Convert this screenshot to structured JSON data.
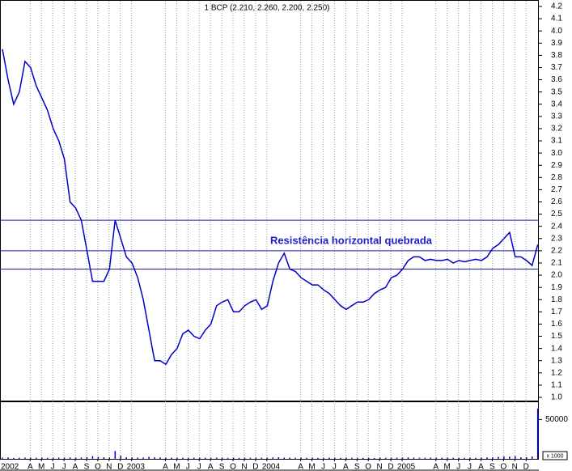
{
  "chart_data": [
    {
      "type": "line",
      "title": "1 BCP (2.210, 2.260, 2.200, 2.250)",
      "annotation": "Resistência horizontal quebrada",
      "categories": [
        "2002",
        null,
        null,
        null,
        null,
        null,
        "A",
        null,
        "M",
        null,
        "J",
        null,
        "J",
        null,
        "A",
        null,
        "S",
        null,
        "O",
        null,
        "N",
        null,
        "D",
        null,
        "2003",
        null,
        null,
        null,
        null,
        null,
        "A",
        null,
        "M",
        null,
        "J",
        null,
        "J",
        null,
        "A",
        null,
        "S",
        null,
        "O",
        null,
        "N",
        null,
        "D",
        null,
        "2004",
        null,
        null,
        null,
        null,
        null,
        "A",
        null,
        "M",
        null,
        "J",
        null,
        "J",
        null,
        "A",
        null,
        "S",
        null,
        "O",
        null,
        "N",
        null,
        "D",
        null,
        "2005",
        null,
        null,
        null,
        null,
        null,
        "A",
        null,
        "M",
        null,
        "J",
        null,
        "J",
        null,
        "A",
        null,
        "S",
        null,
        "O",
        null,
        "N",
        null,
        "D",
        null
      ],
      "series": [
        {
          "name": "BCP",
          "color": "#0000c8",
          "values": [
            3.85,
            3.6,
            3.4,
            3.5,
            3.75,
            3.7,
            3.55,
            3.45,
            3.35,
            3.2,
            3.1,
            2.95,
            2.6,
            2.55,
            2.45,
            2.2,
            1.95,
            1.95,
            1.95,
            2.05,
            2.45,
            2.3,
            2.15,
            2.1,
            1.98,
            1.8,
            1.55,
            1.3,
            1.3,
            1.27,
            1.35,
            1.4,
            1.52,
            1.55,
            1.5,
            1.48,
            1.55,
            1.6,
            1.75,
            1.78,
            1.8,
            1.7,
            1.7,
            1.75,
            1.78,
            1.8,
            1.72,
            1.75,
            1.95,
            2.1,
            2.18,
            2.05,
            2.03,
            1.98,
            1.95,
            1.92,
            1.92,
            1.88,
            1.85,
            1.8,
            1.75,
            1.72,
            1.75,
            1.78,
            1.78,
            1.8,
            1.85,
            1.88,
            1.9,
            1.98,
            2.0,
            2.05,
            2.12,
            2.15,
            2.15,
            2.12,
            2.13,
            2.12,
            2.12,
            2.13,
            2.1,
            2.12,
            2.11,
            2.12,
            2.13,
            2.12,
            2.15,
            2.22,
            2.25,
            2.3,
            2.35,
            2.15,
            2.15,
            2.12,
            2.08,
            2.25
          ]
        }
      ],
      "hlines": [
        2.45,
        2.2,
        2.05
      ],
      "hline_color": "#1c1ca8",
      "ylim": [
        1.0,
        4.2
      ],
      "yticks": [
        {
          "value": 1.0,
          "label": "1.0"
        },
        1.1,
        1.2,
        1.3,
        1.4,
        1.5,
        1.6,
        1.7,
        1.8,
        1.9,
        {
          "value": 2.0,
          "label": "2.0"
        },
        2.1,
        2.2,
        2.3,
        2.4,
        2.5,
        2.6,
        2.7,
        2.8,
        2.9,
        {
          "value": 3.0,
          "label": "3.0"
        },
        3.1,
        3.2,
        3.3,
        3.4,
        3.5,
        3.6,
        3.7,
        3.8,
        3.9,
        {
          "value": 4.0,
          "label": "4.0"
        },
        4.1,
        4.2
      ]
    },
    {
      "type": "bar",
      "ylabel": "x 1000",
      "color": "#0000c8",
      "values": [
        1500,
        1800,
        1200,
        1500,
        1600,
        1400,
        1300,
        1500,
        1200,
        1400,
        1600,
        1500,
        1800,
        1500,
        1700,
        2200,
        3500,
        2500,
        2000,
        1800,
        10000,
        4000,
        2000,
        1800,
        1500,
        1600,
        2500,
        2000,
        1800,
        1500,
        1400,
        1500,
        1300,
        1200,
        1500,
        1400,
        1300,
        1200,
        1500,
        1400,
        1300,
        1500,
        1200,
        1400,
        1300,
        1500,
        1400,
        1300,
        1800,
        2000,
        1500,
        1400,
        1300,
        1500,
        1200,
        1400,
        1300,
        1200,
        1500,
        1300,
        1200,
        1400,
        1300,
        1200,
        1300,
        1400,
        1200,
        1500,
        1300,
        1400,
        1500,
        1600,
        1800,
        1500,
        1400,
        1300,
        1500,
        1400,
        1300,
        1500,
        1400,
        1300,
        1200,
        1400,
        1300,
        1500,
        1800,
        2000,
        2500,
        3000,
        2800,
        3500,
        2000,
        2200,
        3000,
        64000
      ],
      "ylim": [
        0,
        72000
      ],
      "yticks": [
        50000
      ]
    }
  ]
}
